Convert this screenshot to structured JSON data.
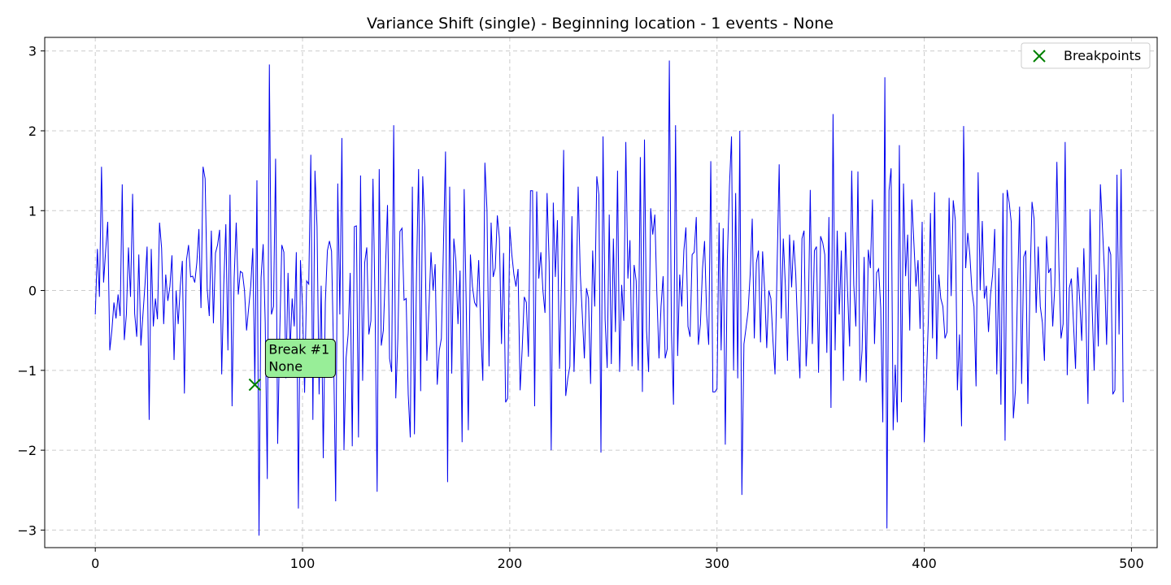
{
  "chart_data": {
    "type": "line",
    "title": "Variance Shift (single) - Beginning location - 1 events - None",
    "xlabel": "",
    "ylabel": "",
    "xlim": [
      -24.4,
      512.4
    ],
    "ylim": [
      -3.22,
      3.17
    ],
    "xticks": [
      0,
      100,
      200,
      300,
      400,
      500
    ],
    "yticks": [
      -3,
      -2,
      -1,
      0,
      1,
      2,
      3
    ],
    "grid": true,
    "legend_position": "top-right",
    "series": [
      {
        "color": "#0000ee",
        "x_start": 0,
        "values": [
          -0.3,
          0.52,
          -0.08,
          1.55,
          0.1,
          0.5,
          0.86,
          -0.75,
          -0.5,
          -0.15,
          -0.35,
          -0.05,
          -0.32,
          1.33,
          -0.62,
          -0.3,
          0.54,
          -0.08,
          1.21,
          -0.29,
          -0.58,
          0.45,
          -0.69,
          -0.3,
          0.08,
          0.55,
          -1.62,
          0.52,
          -0.45,
          -0.1,
          -0.36,
          0.85,
          0.53,
          -0.42,
          0.2,
          -0.13,
          0.05,
          0.44,
          -0.87,
          0.0,
          -0.42,
          0.05,
          0.37,
          -1.29,
          0.38,
          0.57,
          0.17,
          0.18,
          0.1,
          0.35,
          0.77,
          -0.22,
          1.55,
          1.4,
          0.02,
          -0.32,
          0.75,
          -0.41,
          0.47,
          0.57,
          0.76,
          -1.05,
          0.08,
          0.83,
          -0.75,
          1.2,
          -1.45,
          0.15,
          0.85,
          -0.05,
          0.24,
          0.22,
          0.0,
          -0.5,
          -0.22,
          0.05,
          0.53,
          -1.18,
          1.38,
          -3.07,
          0.16,
          0.58,
          -0.4,
          -2.36,
          2.83,
          -0.3,
          -0.2,
          1.65,
          -1.92,
          -0.55,
          0.57,
          0.48,
          -1.1,
          0.22,
          -0.75,
          -0.1,
          -0.45,
          0.48,
          -2.73,
          0.38,
          -0.22,
          -1.28,
          0.12,
          0.08,
          1.7,
          -1.62,
          1.5,
          0.8,
          -1.3,
          0.06,
          -2.1,
          -0.15,
          0.5,
          0.62,
          0.49,
          -0.8,
          -2.64,
          1.34,
          -0.3,
          1.91,
          -2.0,
          -0.85,
          -0.55,
          0.22,
          -1.95,
          0.8,
          0.81,
          -1.84,
          1.44,
          -1.13,
          0.35,
          0.54,
          -0.55,
          -0.38,
          1.4,
          -0.2,
          -2.52,
          1.52,
          -0.69,
          -0.5,
          0.25,
          1.07,
          -0.85,
          -1.02,
          2.07,
          -1.35,
          -0.6,
          0.74,
          0.78,
          -0.12,
          -0.1,
          -1.3,
          -1.84,
          1.3,
          -1.8,
          0.2,
          1.52,
          -1.26,
          1.43,
          0.8,
          -0.88,
          -0.22,
          0.48,
          0.0,
          0.33,
          -1.18,
          -0.75,
          -0.6,
          0.55,
          1.74,
          -2.4,
          1.3,
          -1.04,
          0.65,
          0.37,
          -0.42,
          0.25,
          -1.9,
          1.27,
          -0.2,
          -1.75,
          0.45,
          0.05,
          -0.15,
          -0.2,
          0.38,
          -0.48,
          -1.13,
          1.6,
          1.01,
          -0.95,
          0.85,
          0.17,
          0.28,
          0.94,
          0.65,
          -0.67,
          0.47,
          -1.4,
          -1.35,
          0.8,
          0.45,
          0.2,
          0.05,
          0.27,
          -1.25,
          -0.73,
          -0.08,
          -0.15,
          -0.83,
          1.25,
          1.25,
          -1.45,
          1.24,
          0.15,
          0.48,
          0.0,
          -0.28,
          1.22,
          0.35,
          -2.0,
          1.1,
          0.17,
          0.88,
          -0.98,
          0.17,
          1.76,
          -1.32,
          -1.1,
          -0.95,
          0.93,
          -1.02,
          -0.12,
          1.3,
          0.22,
          -0.3,
          -0.85,
          0.03,
          -0.1,
          -1.17,
          0.5,
          -0.2,
          1.43,
          1.2,
          -2.03,
          1.93,
          -0.36,
          -0.97,
          0.95,
          -0.92,
          0.65,
          -0.52,
          1.5,
          -1.02,
          0.07,
          -0.38,
          1.86,
          0.15,
          0.63,
          -0.95,
          0.32,
          0.12,
          -1.0,
          1.67,
          -1.27,
          1.89,
          -0.5,
          -1.02,
          1.03,
          0.7,
          0.95,
          -0.05,
          -0.85,
          -0.2,
          0.18,
          -0.85,
          -0.73,
          2.88,
          -0.5,
          -1.43,
          2.07,
          -0.82,
          0.2,
          -0.2,
          0.5,
          0.79,
          -0.45,
          -0.58,
          0.45,
          0.48,
          0.92,
          -0.68,
          -0.42,
          0.27,
          0.62,
          -0.3,
          -0.68,
          1.62,
          -1.27,
          -1.27,
          -1.23,
          0.85,
          -0.75,
          0.78,
          -1.93,
          0.4,
          1.3,
          1.93,
          -1.0,
          1.22,
          -1.1,
          2.0,
          -2.56,
          -0.67,
          -0.47,
          -0.26,
          0.2,
          0.9,
          -0.6,
          0.35,
          0.5,
          -0.65,
          0.49,
          0.0,
          -0.72,
          0.0,
          -0.1,
          -0.63,
          -1.05,
          0.3,
          1.58,
          -0.35,
          0.65,
          0.05,
          -0.88,
          0.7,
          0.04,
          0.63,
          0.2,
          -0.55,
          -1.1,
          0.65,
          0.75,
          -0.95,
          -0.4,
          1.26,
          -0.67,
          0.5,
          0.55,
          -1.03,
          0.68,
          0.6,
          0.45,
          -0.78,
          0.92,
          -1.47,
          2.21,
          -0.75,
          0.75,
          -0.3,
          0.5,
          -1.13,
          0.73,
          0.0,
          -0.7,
          1.5,
          0.07,
          -0.45,
          1.49,
          -1.13,
          -0.75,
          0.42,
          -1.15,
          0.51,
          0.28,
          1.14,
          -0.67,
          0.22,
          0.27,
          -0.22,
          -1.65,
          2.67,
          -2.98,
          1.25,
          1.53,
          -1.75,
          -0.93,
          -1.65,
          1.82,
          -1.4,
          1.34,
          0.18,
          0.7,
          -0.5,
          1.14,
          0.6,
          0.05,
          0.38,
          -0.48,
          0.86,
          -1.9,
          -1.18,
          -0.35,
          0.97,
          -0.6,
          1.23,
          -0.86,
          0.2,
          -0.1,
          -0.2,
          -0.6,
          -0.52,
          1.16,
          -0.07,
          1.13,
          0.88,
          -1.25,
          -0.55,
          -1.7,
          2.06,
          0.28,
          0.72,
          0.45,
          0.0,
          -0.2,
          -1.2,
          1.48,
          0.0,
          0.87,
          -0.1,
          0.06,
          -0.52,
          -0.05,
          0.2,
          0.77,
          -1.05,
          0.28,
          -1.43,
          1.22,
          -1.88,
          1.26,
          1.1,
          0.85,
          -1.6,
          -1.25,
          0.0,
          1.05,
          -1.17,
          0.42,
          0.5,
          -1.42,
          0.02,
          1.11,
          0.9,
          -0.28,
          0.55,
          -0.2,
          -0.4,
          -0.88,
          0.68,
          0.22,
          0.28,
          -0.45,
          0.06,
          1.61,
          0.3,
          -0.6,
          -0.42,
          1.86,
          -1.06,
          0.03,
          0.15,
          -0.4,
          -0.98,
          0.29,
          -0.12,
          -0.63,
          0.53,
          -0.3,
          -1.42,
          1.02,
          -0.2,
          -1.0,
          0.2,
          -0.7,
          1.33,
          0.78,
          0.22,
          -0.68,
          0.55,
          0.45,
          -1.3,
          -1.25,
          1.45,
          -0.55,
          1.52,
          -1.4
        ]
      }
    ],
    "breakpoints": [
      {
        "x": 77,
        "y": -1.18,
        "label_line1": "Break #1",
        "label_line2": "None"
      }
    ],
    "legend": {
      "label": "Breakpoints",
      "marker_color": "#008000"
    }
  }
}
